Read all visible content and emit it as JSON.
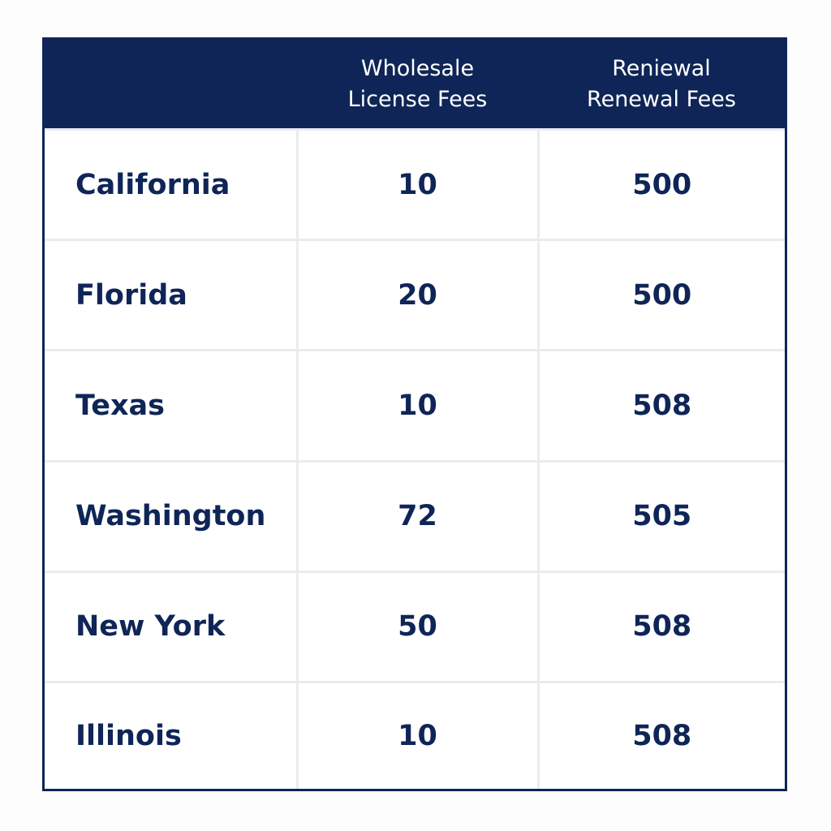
{
  "table": {
    "header": [
      "Wholesale\nLicense Fees",
      "Reniewal\nRenewal Fees"
    ],
    "rows": [
      [
        "California",
        "10",
        "500"
      ],
      [
        "Florida",
        "20",
        "500"
      ],
      [
        "Texas",
        "10",
        "508"
      ],
      [
        "Washington",
        "72",
        "505"
      ],
      [
        "New York",
        "50",
        "508"
      ],
      [
        "Illinois",
        "10",
        "508"
      ]
    ]
  }
}
